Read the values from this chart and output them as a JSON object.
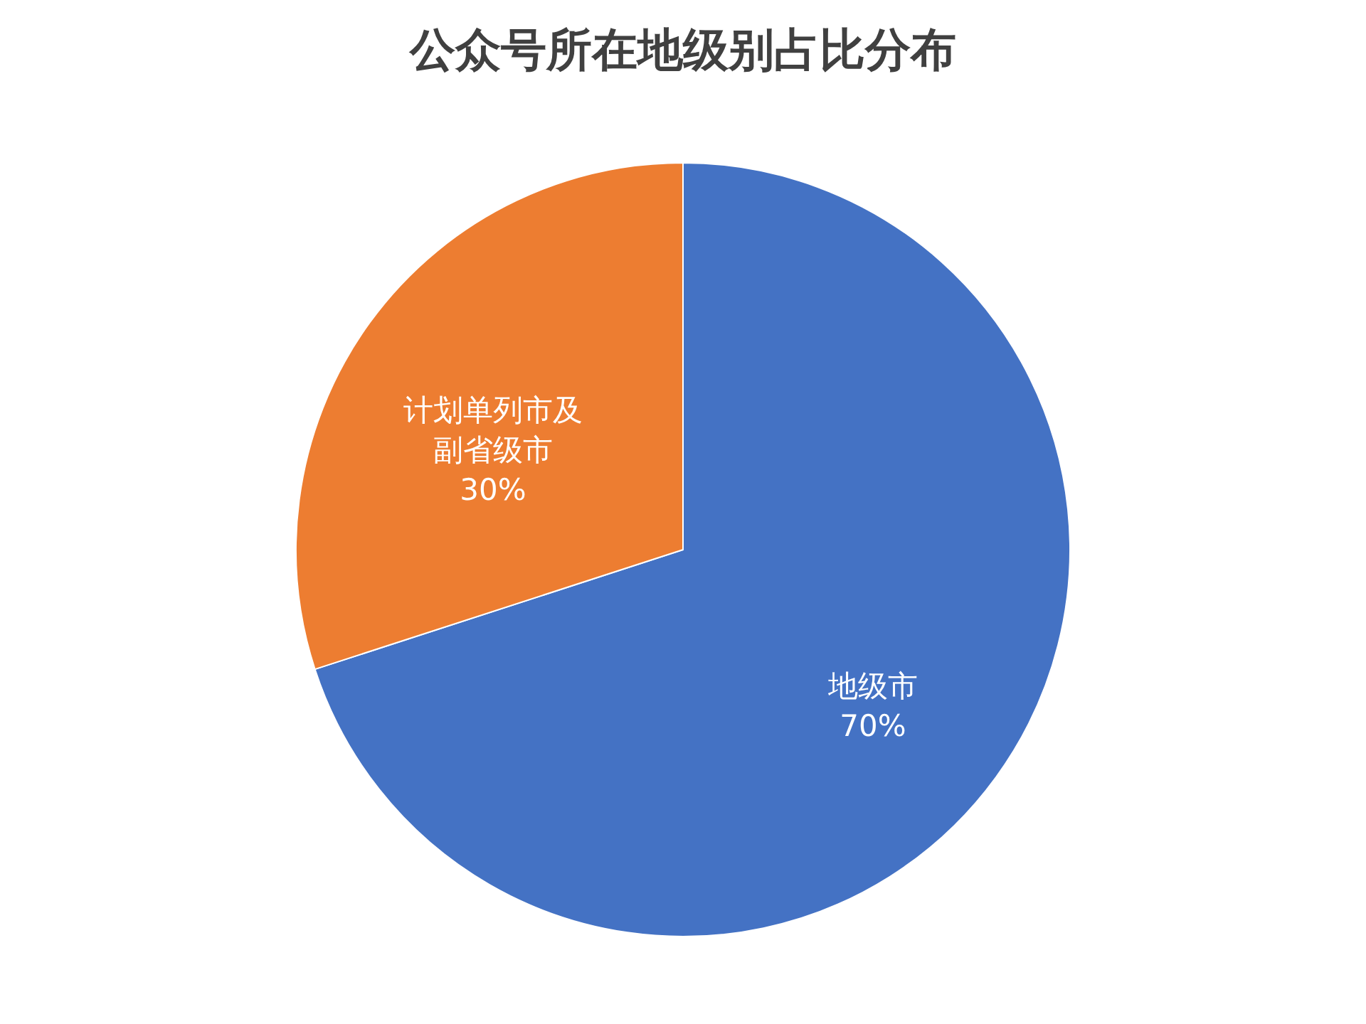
{
  "chart_data": {
    "type": "pie",
    "title": "公众号所在地级别占比分布",
    "categories": [
      "地级市",
      "计划单列市及副省级市"
    ],
    "values": [
      70,
      30
    ],
    "colors": [
      "#4472c4",
      "#ed7d31"
    ],
    "value_labels": [
      "70%",
      "30%"
    ],
    "legend": false
  }
}
